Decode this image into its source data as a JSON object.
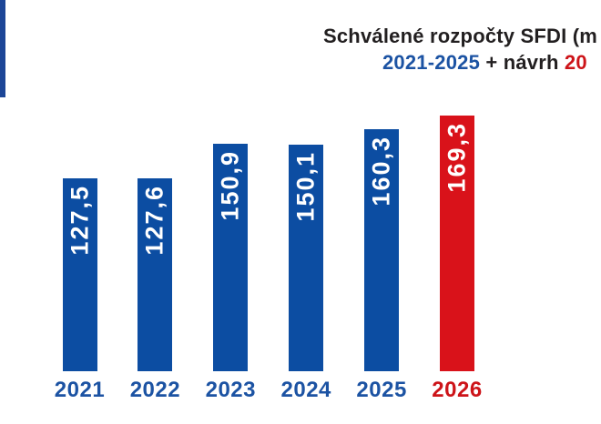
{
  "title": {
    "line1": "Schválené rozpočty SFDI (m",
    "line2_parts": [
      {
        "text": "2021-2025",
        "color_key": "blue_text"
      },
      {
        "text": " + návrh ",
        "color_key": "dark_text"
      },
      {
        "text": "20",
        "color_key": "red_text"
      }
    ]
  },
  "colors": {
    "bar_blue": "#0c4da2",
    "bar_red": "#d9121a",
    "blue_text": "#1c53a3",
    "dark_text": "#221f20",
    "red_text": "#cd1419",
    "value_label": "#ffffff",
    "accent_strip": "#1c4697",
    "background": "#ffffff"
  },
  "chart_data": {
    "type": "bar",
    "categories": [
      "2021",
      "2022",
      "2023",
      "2024",
      "2025",
      "2026"
    ],
    "values": [
      127.5,
      127.6,
      150.9,
      150.1,
      160.3,
      169.3
    ],
    "value_labels": [
      "127,5",
      "127,6",
      "150,9",
      "150,1",
      "160,3",
      "169,3"
    ],
    "bar_color_keys": [
      "bar_blue",
      "bar_blue",
      "bar_blue",
      "bar_blue",
      "bar_blue",
      "bar_red"
    ],
    "category_color_keys": [
      "blue_text",
      "blue_text",
      "blue_text",
      "blue_text",
      "blue_text",
      "red_text"
    ],
    "title": "Schválené rozpočty SFDI (m… 2021-2025 + návrh 20…",
    "xlabel": "",
    "ylabel": "",
    "ylim": [
      0,
      180
    ],
    "grid": false,
    "legend": false,
    "value_label_rotation": -90,
    "decimal_separator": ","
  }
}
